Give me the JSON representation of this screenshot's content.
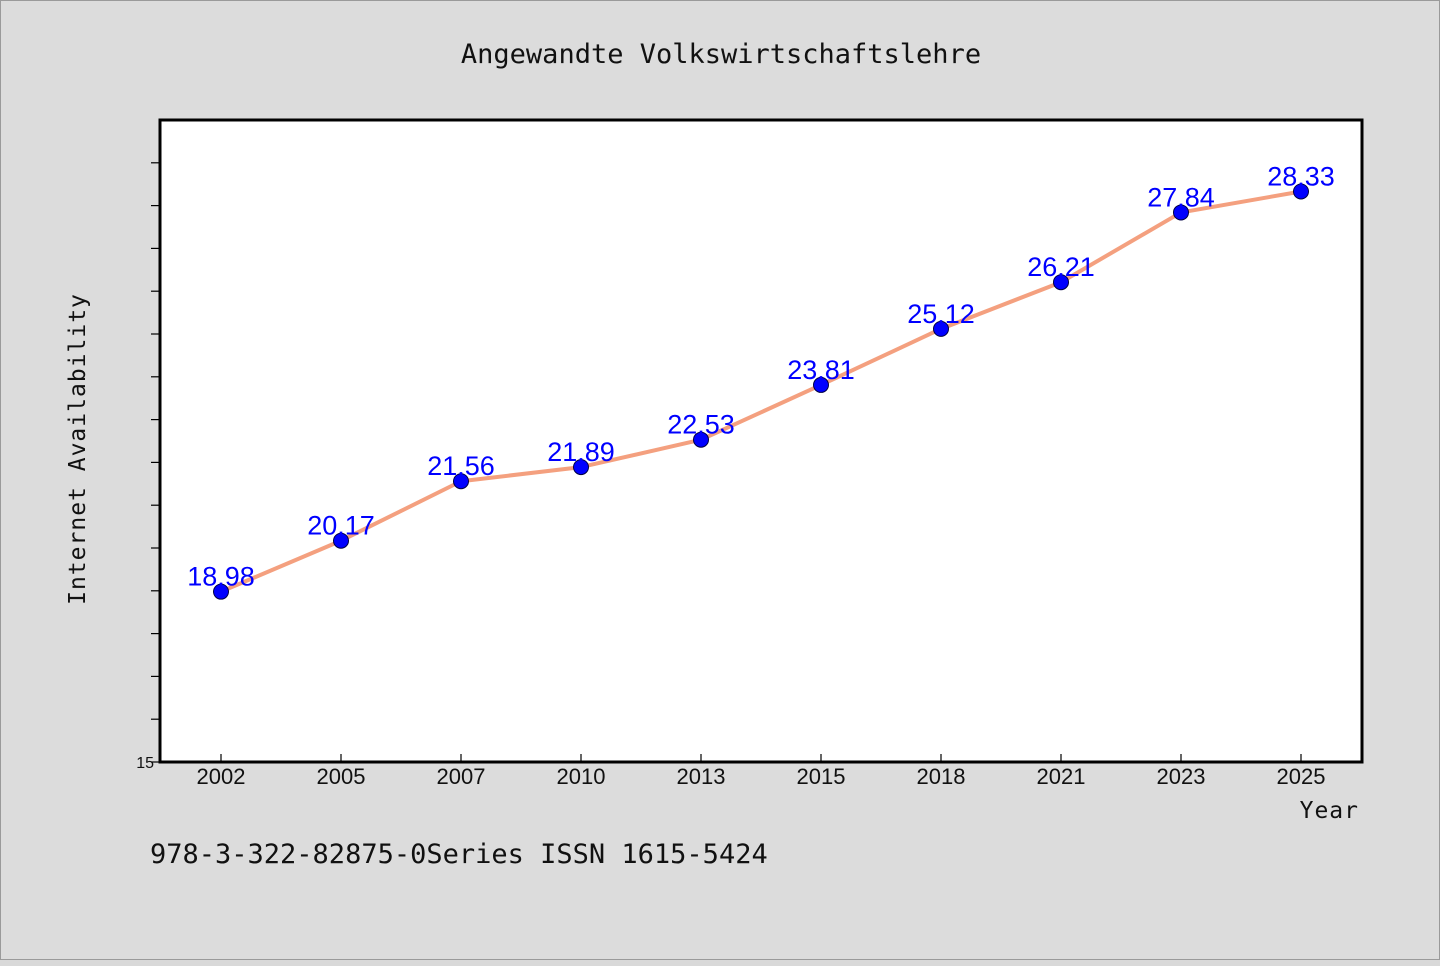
{
  "chart_data": {
    "type": "line",
    "title": "Angewandte Volkswirtschaftslehre",
    "xlabel": "Year",
    "ylabel": "Internet Availability",
    "x": [
      "2002",
      "2005",
      "2007",
      "2010",
      "2013",
      "2015",
      "2018",
      "2021",
      "2023",
      "2025"
    ],
    "series": [
      {
        "values": [
          18.98,
          20.17,
          21.56,
          21.89,
          22.53,
          23.81,
          25.12,
          26.21,
          27.84,
          28.33
        ],
        "data_labels": [
          "18.98",
          "20.17",
          "21.56",
          "21.89",
          "22.53",
          "23.81",
          "25.12",
          "26.21",
          "27.84",
          "28.33"
        ]
      }
    ],
    "ylim": [
      15,
      30
    ],
    "y_tick_labels": [
      "15"
    ],
    "grid": false,
    "legend": "none",
    "colors": {
      "line": "#f4a07f",
      "marker": "#0000ff",
      "data_label": "#0000ff",
      "plot_background": "#ffffff",
      "page_background": "#dcdcdc"
    }
  },
  "footer": {
    "text": "978-3-322-82875-0Series ISSN 1615-5424"
  }
}
